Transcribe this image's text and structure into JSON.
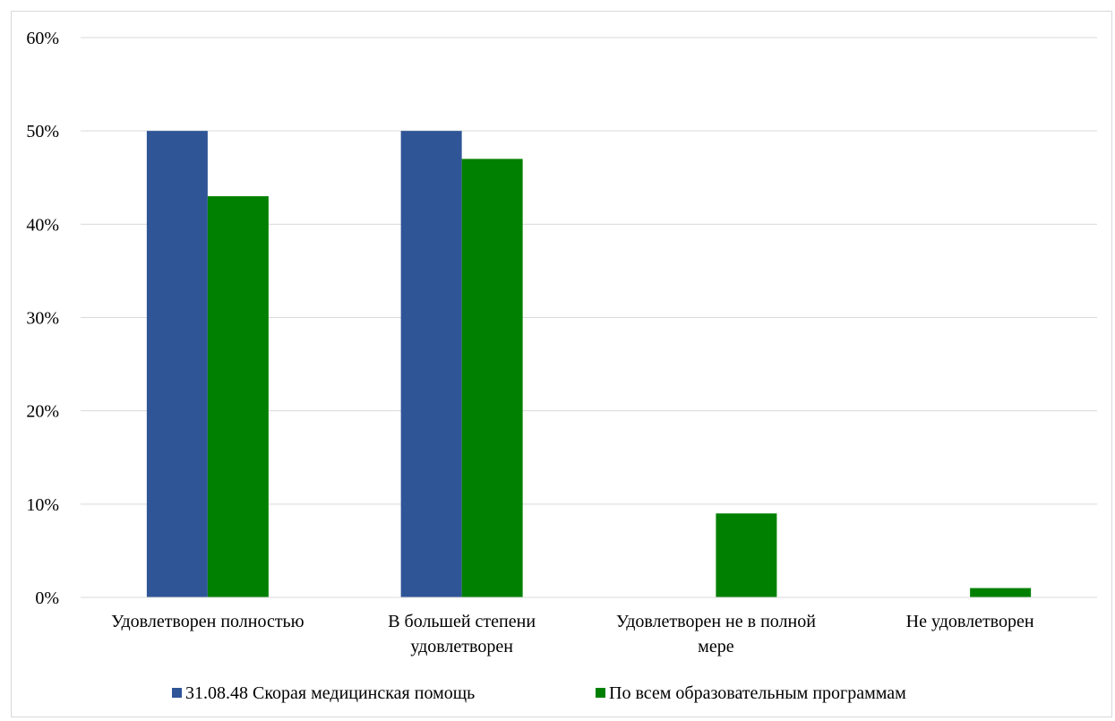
{
  "chart_data": {
    "type": "bar",
    "categories": [
      [
        "Удовлетворен полностью"
      ],
      [
        "В большей степени",
        "удовлетворен"
      ],
      [
        "Удовлетворен не в полной",
        "мере"
      ],
      [
        "Не удовлетворен"
      ]
    ],
    "series": [
      {
        "name": "31.08.48 Скорая медицинская помощь",
        "color": "#2F5597",
        "values": [
          50,
          50,
          0,
          0
        ]
      },
      {
        "name": "По всем образовательным программам",
        "color": "#008000",
        "values": [
          43,
          47,
          9,
          1
        ]
      }
    ],
    "ylim": [
      0,
      60
    ],
    "yticks": [
      0,
      10,
      20,
      30,
      40,
      50,
      60
    ],
    "ytick_labels": [
      "0%",
      "10%",
      "20%",
      "30%",
      "40%",
      "50%",
      "60%"
    ],
    "grid": true,
    "gridline_color": "#d9d9d9",
    "legend_position": "bottom"
  }
}
